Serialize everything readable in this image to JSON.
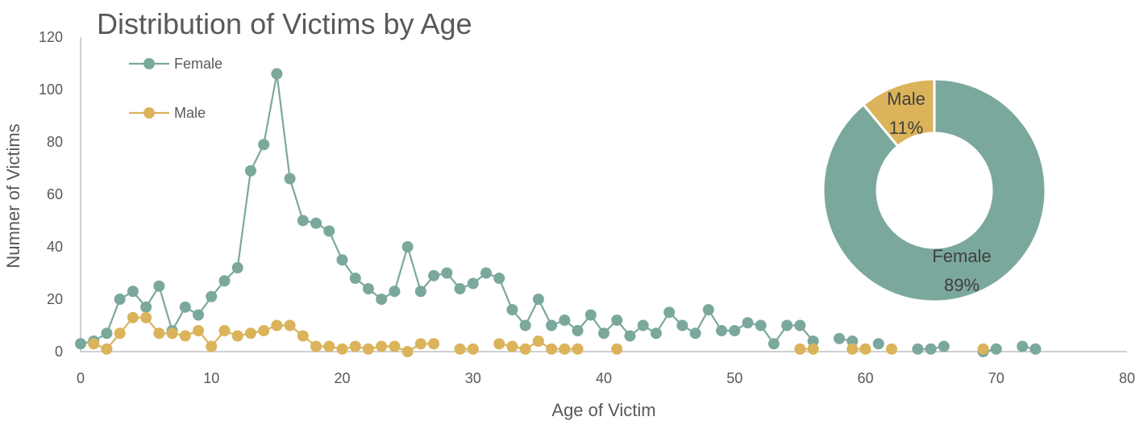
{
  "colors": {
    "female": "#7BA89C",
    "male": "#DBB35A",
    "axis": "#BFBFBF",
    "text": "#595959"
  },
  "chart_data": [
    {
      "type": "line",
      "title": "Distribution of Victims by Age",
      "xlabel": "Age of Victim",
      "ylabel": "Numner of Victims",
      "xlim": [
        0,
        80
      ],
      "ylim": [
        0,
        120
      ],
      "xticks": [
        0,
        10,
        20,
        30,
        40,
        50,
        60,
        70,
        80
      ],
      "yticks": [
        0,
        20,
        40,
        60,
        80,
        100,
        120
      ],
      "grid": false,
      "legend": "top-left",
      "series": [
        {
          "name": "Female",
          "color": "#7BA89C",
          "points": [
            [
              0,
              3
            ],
            [
              1,
              4
            ],
            [
              2,
              7
            ],
            [
              3,
              20
            ],
            [
              4,
              23
            ],
            [
              5,
              17
            ],
            [
              6,
              25
            ],
            [
              7,
              8
            ],
            [
              8,
              17
            ],
            [
              9,
              14
            ],
            [
              10,
              21
            ],
            [
              11,
              27
            ],
            [
              12,
              32
            ],
            [
              13,
              69
            ],
            [
              14,
              79
            ],
            [
              15,
              106
            ],
            [
              16,
              66
            ],
            [
              17,
              50
            ],
            [
              18,
              49
            ],
            [
              19,
              46
            ],
            [
              20,
              35
            ],
            [
              21,
              28
            ],
            [
              22,
              24
            ],
            [
              23,
              20
            ],
            [
              24,
              23
            ],
            [
              25,
              40
            ],
            [
              26,
              23
            ],
            [
              27,
              29
            ],
            [
              28,
              30
            ],
            [
              29,
              24
            ],
            [
              30,
              26
            ],
            [
              31,
              30
            ],
            [
              32,
              28
            ],
            [
              33,
              16
            ],
            [
              34,
              10
            ],
            [
              35,
              20
            ],
            [
              36,
              10
            ],
            [
              37,
              12
            ],
            [
              38,
              8
            ],
            [
              39,
              14
            ],
            [
              40,
              7
            ],
            [
              41,
              12
            ],
            [
              42,
              6
            ],
            [
              43,
              10
            ],
            [
              44,
              7
            ],
            [
              45,
              15
            ],
            [
              46,
              10
            ],
            [
              47,
              7
            ],
            [
              48,
              16
            ],
            [
              49,
              8
            ],
            [
              50,
              8
            ],
            [
              51,
              11
            ],
            [
              52,
              10
            ],
            [
              53,
              3
            ],
            [
              54,
              10
            ],
            [
              55,
              10
            ],
            [
              56,
              4
            ],
            [
              58,
              5
            ],
            [
              59,
              4
            ],
            [
              61,
              3
            ],
            [
              64,
              1
            ],
            [
              65,
              1
            ],
            [
              66,
              2
            ],
            [
              69,
              0
            ],
            [
              70,
              1
            ],
            [
              72,
              2
            ],
            [
              73,
              1
            ]
          ]
        },
        {
          "name": "Male",
          "color": "#DBB35A",
          "points": [
            [
              1,
              3
            ],
            [
              2,
              1
            ],
            [
              3,
              7
            ],
            [
              4,
              13
            ],
            [
              5,
              13
            ],
            [
              6,
              7
            ],
            [
              7,
              7
            ],
            [
              8,
              6
            ],
            [
              9,
              8
            ],
            [
              10,
              2
            ],
            [
              11,
              8
            ],
            [
              12,
              6
            ],
            [
              13,
              7
            ],
            [
              14,
              8
            ],
            [
              15,
              10
            ],
            [
              16,
              10
            ],
            [
              17,
              6
            ],
            [
              18,
              2
            ],
            [
              19,
              2
            ],
            [
              20,
              1
            ],
            [
              21,
              2
            ],
            [
              22,
              1
            ],
            [
              23,
              2
            ],
            [
              24,
              2
            ],
            [
              25,
              0
            ],
            [
              26,
              3
            ],
            [
              27,
              3
            ],
            [
              29,
              1
            ],
            [
              30,
              1
            ],
            [
              32,
              3
            ],
            [
              33,
              2
            ],
            [
              34,
              1
            ],
            [
              35,
              4
            ],
            [
              36,
              1
            ],
            [
              37,
              1
            ],
            [
              38,
              1
            ],
            [
              41,
              1
            ],
            [
              55,
              1
            ],
            [
              56,
              1
            ],
            [
              59,
              1
            ],
            [
              60,
              1
            ],
            [
              62,
              1
            ],
            [
              69,
              1
            ]
          ]
        }
      ]
    },
    {
      "type": "pie",
      "variant": "donut",
      "slices": [
        {
          "label": "Female",
          "value": 89,
          "display": "89%",
          "color": "#7BA89C"
        },
        {
          "label": "Male",
          "value": 11,
          "display": "11%",
          "color": "#DBB35A"
        }
      ]
    }
  ]
}
